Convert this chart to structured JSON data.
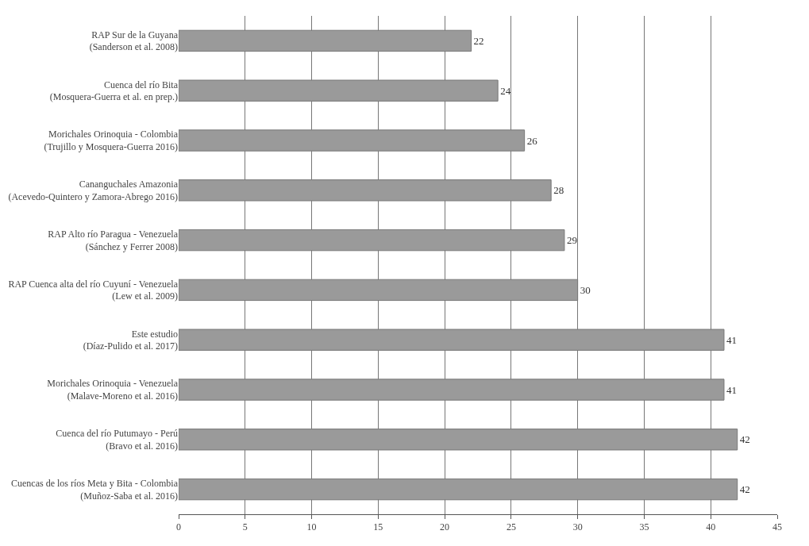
{
  "chart_data": {
    "type": "bar",
    "orientation": "horizontal",
    "categories": [
      "RAP Sur de la Guyana\n(Sanderson et al. 2008)",
      "Cuenca del río Bita\n(Mosquera-Guerra et al. en prep.)",
      "Morichales Orinoquia - Colombia\n(Trujillo y Mosquera-Guerra 2016)",
      "Cananguchales Amazonia\n(Acevedo-Quintero y Zamora-Abrego 2016)",
      "RAP Alto río Paragua - Venezuela\n(Sánchez y Ferrer 2008)",
      "RAP Cuenca alta del río Cuyuní - Venezuela\n(Lew et al. 2009)",
      "Este estudio\n(Díaz-Pulido et al. 2017)",
      "Morichales Orinoquia - Venezuela\n(Malave-Moreno et al. 2016)",
      "Cuenca del río Putumayo - Perú\n(Bravo et al. 2016)",
      "Cuencas de los ríos Meta y Bita - Colombia\n(Muñoz-Saba et al. 2016)"
    ],
    "values": [
      22,
      24,
      26,
      28,
      29,
      30,
      41,
      41,
      42,
      42
    ],
    "color": "#9a9a9a",
    "xlim": [
      0,
      45
    ],
    "xticks": [
      0,
      5,
      10,
      15,
      20,
      25,
      30,
      35,
      40,
      45
    ],
    "grid": "x",
    "data_labels": true
  }
}
